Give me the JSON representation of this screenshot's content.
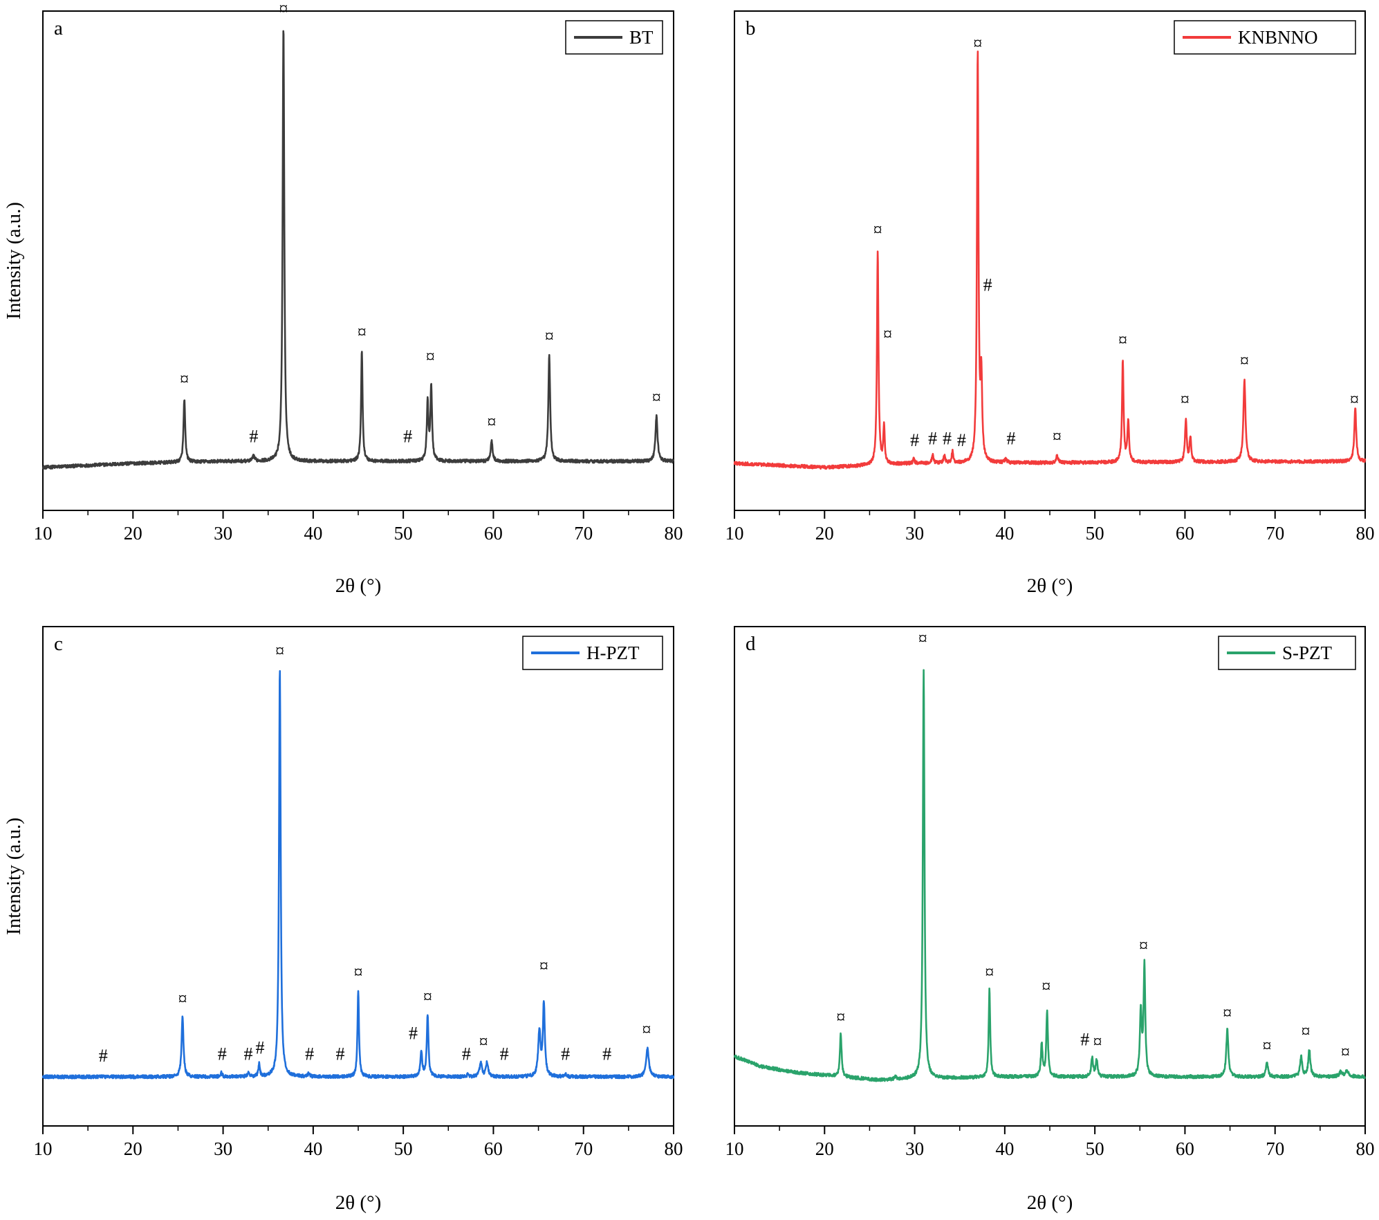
{
  "figure": {
    "panels": [
      {
        "id": "a",
        "panel_label": "a",
        "color": "#3c3c3c",
        "legend": "BT",
        "xlabel": "2θ (°)",
        "ylabel": "Intensity (a.u.)"
      },
      {
        "id": "b",
        "panel_label": "b",
        "color": "#f23b3b",
        "legend": "KNBNNO",
        "xlabel": "2θ (°)",
        "ylabel": ""
      },
      {
        "id": "c",
        "panel_label": "c",
        "color": "#1f6fdb",
        "legend": "H-PZT",
        "xlabel": "2θ (°)",
        "ylabel": "Intensity (a.u.)"
      },
      {
        "id": "d",
        "panel_label": "d",
        "color": "#2aa36b",
        "legend": "S-PZT",
        "xlabel": "2θ (°)",
        "ylabel": ""
      }
    ]
  },
  "chart_data": [
    {
      "type": "line",
      "panel": "a",
      "xlabel": "2θ (°)",
      "ylabel": "Intensity (a.u.)",
      "xlim": [
        10,
        80
      ],
      "xticks": [
        10,
        20,
        30,
        40,
        50,
        60,
        70,
        80
      ],
      "ylim": [
        -0.12,
        1.1
      ],
      "yticks_shown": false,
      "grid": false,
      "legend_position": "top-right",
      "series": [
        {
          "name": "BT",
          "color": "#3c3c3c",
          "baseline": [
            [
              10,
              -0.015
            ],
            [
              20,
              -0.005
            ],
            [
              30,
              0.0
            ],
            [
              80,
              0.0
            ]
          ],
          "peaks": [
            {
              "x": 25.7,
              "h": 0.155,
              "w": 0.22
            },
            {
              "x": 33.4,
              "h": 0.012,
              "w": 0.3
            },
            {
              "x": 36.7,
              "h": 1.065,
              "w": 0.22
            },
            {
              "x": 45.4,
              "h": 0.27,
              "w": 0.2
            },
            {
              "x": 52.7,
              "h": 0.14,
              "w": 0.22
            },
            {
              "x": 53.1,
              "h": 0.18,
              "w": 0.22
            },
            {
              "x": 59.8,
              "h": 0.05,
              "w": 0.26
            },
            {
              "x": 66.2,
              "h": 0.26,
              "w": 0.24
            },
            {
              "x": 78.1,
              "h": 0.11,
              "w": 0.28
            }
          ]
        }
      ],
      "annotations": [
        {
          "text": "¤",
          "x": 25.7,
          "y": 0.18
        },
        {
          "text": "#",
          "x": 33.4,
          "y": 0.04
        },
        {
          "text": "¤",
          "x": 36.7,
          "y": 1.085
        },
        {
          "text": "¤",
          "x": 45.4,
          "y": 0.295
        },
        {
          "text": "#",
          "x": 50.5,
          "y": 0.04
        },
        {
          "text": "¤",
          "x": 53.0,
          "y": 0.235
        },
        {
          "text": "¤",
          "x": 59.8,
          "y": 0.075
        },
        {
          "text": "¤",
          "x": 66.2,
          "y": 0.285
        },
        {
          "text": "¤",
          "x": 78.1,
          "y": 0.135
        }
      ]
    },
    {
      "type": "line",
      "panel": "b",
      "xlabel": "2θ (°)",
      "ylabel": "",
      "xlim": [
        10,
        80
      ],
      "xticks": [
        10,
        20,
        30,
        40,
        50,
        60,
        70,
        80
      ],
      "ylim": [
        -0.12,
        1.1
      ],
      "yticks_shown": false,
      "grid": false,
      "legend_position": "top-right",
      "series": [
        {
          "name": "KNBNNO",
          "color": "#f23b3b",
          "baseline": [
            [
              10,
              -0.005
            ],
            [
              20,
              -0.015
            ],
            [
              30,
              -0.005
            ],
            [
              80,
              0.0
            ]
          ],
          "peaks": [
            {
              "x": 25.9,
              "h": 0.52,
              "w": 0.2
            },
            {
              "x": 26.6,
              "h": 0.09,
              "w": 0.2
            },
            {
              "x": 29.9,
              "h": 0.01,
              "w": 0.2
            },
            {
              "x": 32.0,
              "h": 0.02,
              "w": 0.2
            },
            {
              "x": 33.3,
              "h": 0.02,
              "w": 0.2
            },
            {
              "x": 34.2,
              "h": 0.03,
              "w": 0.2
            },
            {
              "x": 37.0,
              "h": 1.0,
              "w": 0.2
            },
            {
              "x": 37.4,
              "h": 0.2,
              "w": 0.22
            },
            {
              "x": 40.1,
              "h": 0.01,
              "w": 0.25
            },
            {
              "x": 45.8,
              "h": 0.018,
              "w": 0.25
            },
            {
              "x": 53.1,
              "h": 0.25,
              "w": 0.2
            },
            {
              "x": 53.7,
              "h": 0.1,
              "w": 0.22
            },
            {
              "x": 60.1,
              "h": 0.105,
              "w": 0.22
            },
            {
              "x": 60.6,
              "h": 0.06,
              "w": 0.22
            },
            {
              "x": 66.6,
              "h": 0.2,
              "w": 0.28
            },
            {
              "x": 78.9,
              "h": 0.13,
              "w": 0.25
            }
          ]
        }
      ],
      "annotations": [
        {
          "text": "¤",
          "x": 25.9,
          "y": 0.545
        },
        {
          "text": "¤",
          "x": 27.0,
          "y": 0.29
        },
        {
          "text": "#",
          "x": 30.0,
          "y": 0.03
        },
        {
          "text": "#",
          "x": 32.0,
          "y": 0.035
        },
        {
          "text": "#",
          "x": 33.6,
          "y": 0.035
        },
        {
          "text": "#",
          "x": 35.2,
          "y": 0.03
        },
        {
          "text": "¤",
          "x": 37.0,
          "y": 1.0
        },
        {
          "text": "#",
          "x": 38.1,
          "y": 0.41
        },
        {
          "text": "#",
          "x": 40.7,
          "y": 0.035
        },
        {
          "text": "¤",
          "x": 45.8,
          "y": 0.04
        },
        {
          "text": "¤",
          "x": 53.1,
          "y": 0.275
        },
        {
          "text": "¤",
          "x": 60.0,
          "y": 0.13
        },
        {
          "text": "¤",
          "x": 66.6,
          "y": 0.225
        },
        {
          "text": "¤",
          "x": 78.8,
          "y": 0.13
        }
      ]
    },
    {
      "type": "line",
      "panel": "c",
      "xlabel": "2θ (°)",
      "ylabel": "Intensity (a.u.)",
      "xlim": [
        10,
        80
      ],
      "xticks": [
        10,
        20,
        30,
        40,
        50,
        60,
        70,
        80
      ],
      "ylim": [
        -0.12,
        1.1
      ],
      "yticks_shown": false,
      "grid": false,
      "legend_position": "top-right",
      "series": [
        {
          "name": "H-PZT",
          "color": "#1f6fdb",
          "baseline": [
            [
              10,
              0.0
            ],
            [
              80,
              0.0
            ]
          ],
          "peaks": [
            {
              "x": 25.5,
              "h": 0.145,
              "w": 0.25
            },
            {
              "x": 29.8,
              "h": 0.012,
              "w": 0.2
            },
            {
              "x": 32.8,
              "h": 0.012,
              "w": 0.2
            },
            {
              "x": 34.0,
              "h": 0.03,
              "w": 0.2
            },
            {
              "x": 36.3,
              "h": 1.0,
              "w": 0.22
            },
            {
              "x": 39.5,
              "h": 0.008,
              "w": 0.2
            },
            {
              "x": 45.0,
              "h": 0.21,
              "w": 0.2
            },
            {
              "x": 52.0,
              "h": 0.06,
              "w": 0.25
            },
            {
              "x": 52.7,
              "h": 0.15,
              "w": 0.22
            },
            {
              "x": 57.2,
              "h": 0.008,
              "w": 0.2
            },
            {
              "x": 58.6,
              "h": 0.035,
              "w": 0.3
            },
            {
              "x": 59.3,
              "h": 0.035,
              "w": 0.3
            },
            {
              "x": 65.1,
              "h": 0.11,
              "w": 0.3
            },
            {
              "x": 65.6,
              "h": 0.18,
              "w": 0.25
            },
            {
              "x": 68.0,
              "h": 0.006,
              "w": 0.2
            },
            {
              "x": 77.1,
              "h": 0.07,
              "w": 0.35
            }
          ]
        }
      ],
      "annotations": [
        {
          "text": "#",
          "x": 16.7,
          "y": 0.03
        },
        {
          "text": "¤",
          "x": 25.5,
          "y": 0.17
        },
        {
          "text": "#",
          "x": 29.9,
          "y": 0.035
        },
        {
          "text": "#",
          "x": 32.8,
          "y": 0.035
        },
        {
          "text": "#",
          "x": 34.1,
          "y": 0.05
        },
        {
          "text": "¤",
          "x": 36.3,
          "y": 1.02
        },
        {
          "text": "#",
          "x": 39.6,
          "y": 0.035
        },
        {
          "text": "#",
          "x": 43.0,
          "y": 0.035
        },
        {
          "text": "¤",
          "x": 45.0,
          "y": 0.235
        },
        {
          "text": "#",
          "x": 51.1,
          "y": 0.085
        },
        {
          "text": "¤",
          "x": 52.7,
          "y": 0.175
        },
        {
          "text": "#",
          "x": 57.0,
          "y": 0.035
        },
        {
          "text": "¤",
          "x": 58.9,
          "y": 0.065
        },
        {
          "text": "#",
          "x": 61.2,
          "y": 0.035
        },
        {
          "text": "¤",
          "x": 65.6,
          "y": 0.25
        },
        {
          "text": "#",
          "x": 68.0,
          "y": 0.035
        },
        {
          "text": "#",
          "x": 72.6,
          "y": 0.035
        },
        {
          "text": "¤",
          "x": 77.0,
          "y": 0.095
        }
      ]
    },
    {
      "type": "line",
      "panel": "d",
      "xlabel": "2θ (°)",
      "ylabel": "",
      "xlim": [
        10,
        80
      ],
      "xticks": [
        10,
        20,
        30,
        40,
        50,
        60,
        70,
        80
      ],
      "ylim": [
        -0.12,
        1.1
      ],
      "yticks_shown": false,
      "grid": false,
      "legend_position": "top-right",
      "series": [
        {
          "name": "S-PZT",
          "color": "#2aa36b",
          "baseline": [
            [
              10,
              0.05
            ],
            [
              13,
              0.025
            ],
            [
              17,
              0.01
            ],
            [
              22,
              0.0
            ],
            [
              26,
              -0.008
            ],
            [
              30,
              -0.005
            ],
            [
              40,
              0.0
            ],
            [
              80,
              0.0
            ]
          ],
          "peaks": [
            {
              "x": 21.8,
              "h": 0.105,
              "w": 0.22
            },
            {
              "x": 27.9,
              "h": 0.006,
              "w": 0.3
            },
            {
              "x": 31.0,
              "h": 1.0,
              "w": 0.22
            },
            {
              "x": 38.3,
              "h": 0.215,
              "w": 0.2
            },
            {
              "x": 44.1,
              "h": 0.08,
              "w": 0.22
            },
            {
              "x": 44.7,
              "h": 0.16,
              "w": 0.22
            },
            {
              "x": 49.7,
              "h": 0.045,
              "w": 0.25
            },
            {
              "x": 50.2,
              "h": 0.04,
              "w": 0.25
            },
            {
              "x": 55.1,
              "h": 0.16,
              "w": 0.25
            },
            {
              "x": 55.5,
              "h": 0.27,
              "w": 0.22
            },
            {
              "x": 64.7,
              "h": 0.115,
              "w": 0.28
            },
            {
              "x": 69.1,
              "h": 0.035,
              "w": 0.28
            },
            {
              "x": 72.9,
              "h": 0.05,
              "w": 0.28
            },
            {
              "x": 73.8,
              "h": 0.065,
              "w": 0.28
            },
            {
              "x": 77.3,
              "h": 0.012,
              "w": 0.4
            },
            {
              "x": 78.0,
              "h": 0.015,
              "w": 0.4
            }
          ]
        }
      ],
      "annotations": [
        {
          "text": "¤",
          "x": 21.8,
          "y": 0.125
        },
        {
          "text": "¤",
          "x": 30.9,
          "y": 1.05
        },
        {
          "text": "¤",
          "x": 38.3,
          "y": 0.235
        },
        {
          "text": "¤",
          "x": 44.6,
          "y": 0.2
        },
        {
          "text": "#",
          "x": 48.9,
          "y": 0.07
        },
        {
          "text": "¤",
          "x": 50.3,
          "y": 0.065
        },
        {
          "text": "¤",
          "x": 55.4,
          "y": 0.3
        },
        {
          "text": "¤",
          "x": 64.7,
          "y": 0.135
        },
        {
          "text": "¤",
          "x": 69.1,
          "y": 0.055
        },
        {
          "text": "¤",
          "x": 73.4,
          "y": 0.09
        },
        {
          "text": "¤",
          "x": 77.8,
          "y": 0.04
        }
      ]
    }
  ]
}
